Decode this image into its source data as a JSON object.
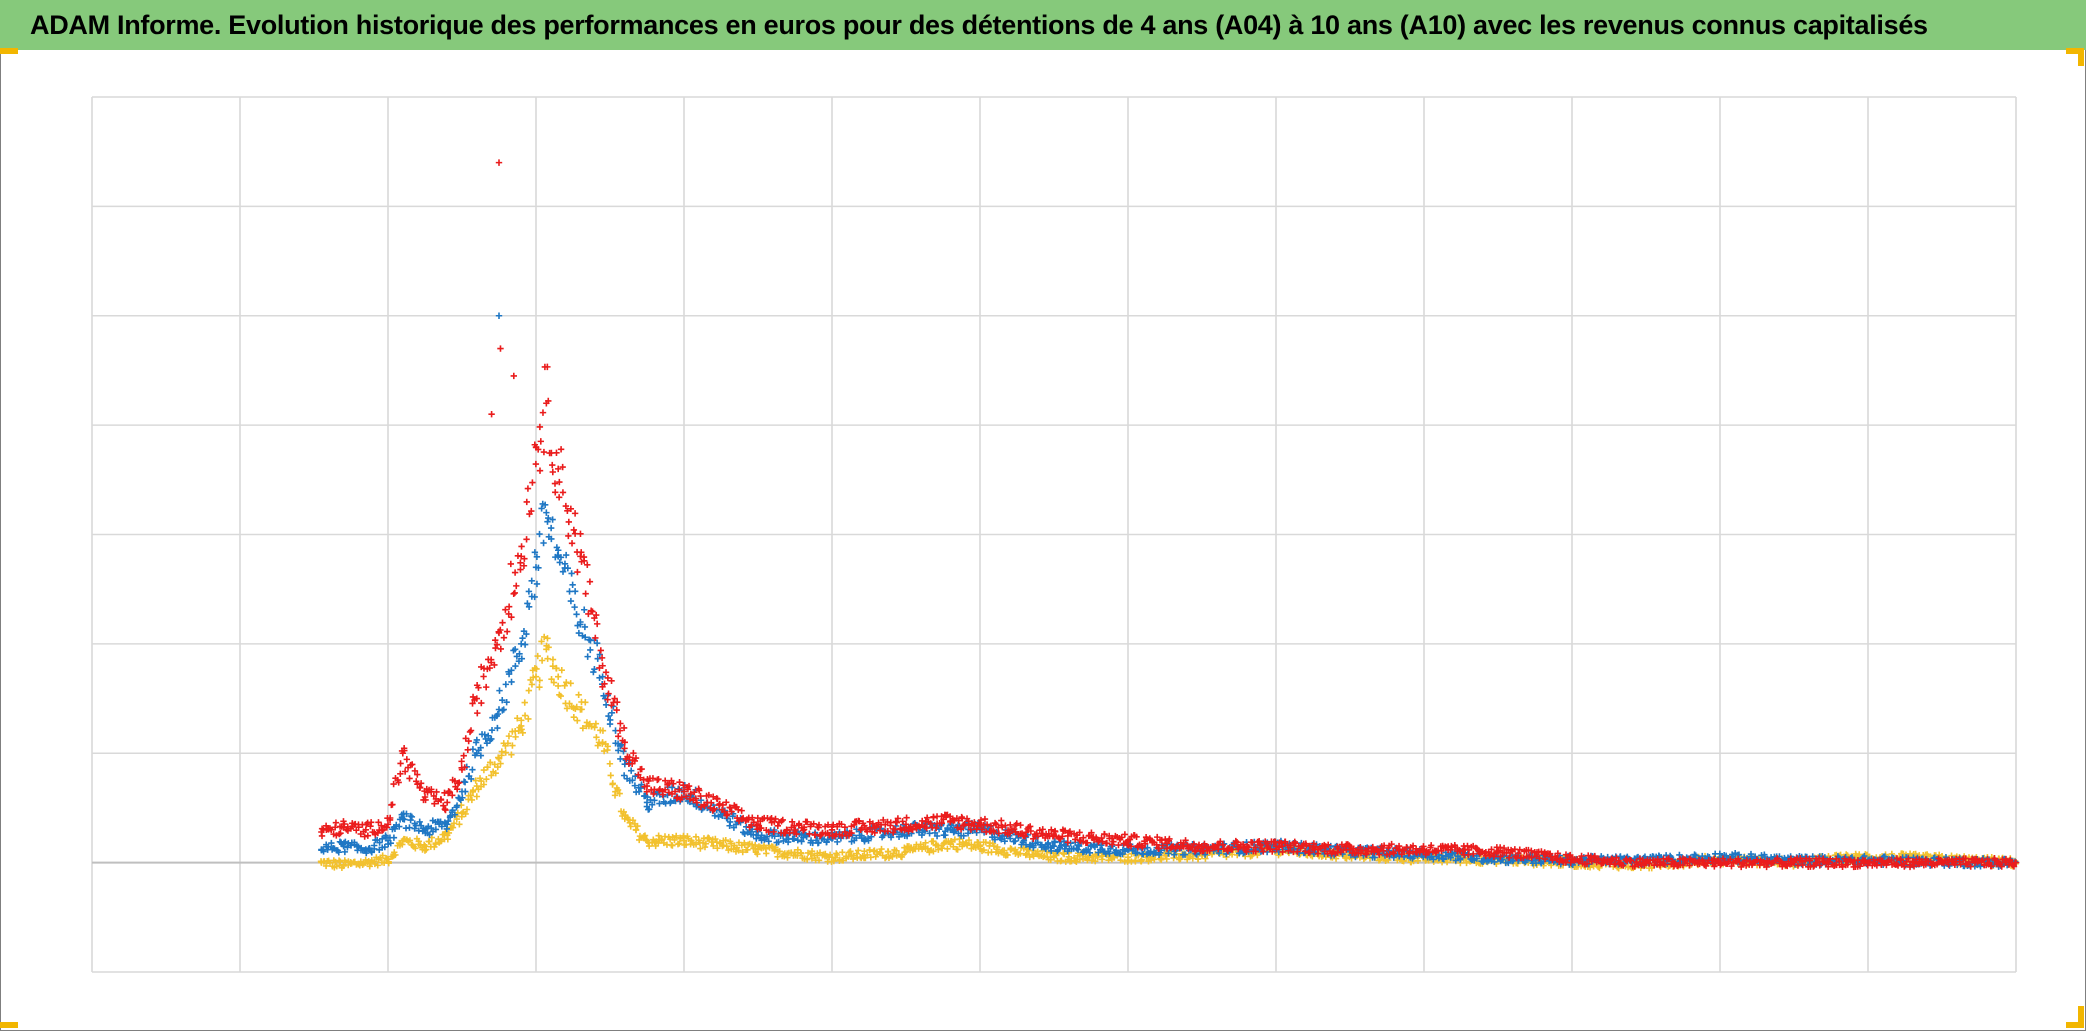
{
  "page": {
    "title": "ADAM Informe. Evolution historique des performances en euros pour des détentions de 4 ans (A04) à 10 ans (A10) avec les revenus connus capitalisés",
    "banner_color": "#86c97b",
    "corner_color": "#f2b600"
  },
  "chart_data": {
    "type": "scatter",
    "title": "ADAM Informe. Evolution historique des performances en euros pour des détentions de 4 ans (A04) à 10 ans (A10) avec les revenus connus capitalisés",
    "xlabel": "",
    "ylabel": "",
    "marker": "plus",
    "grid": true,
    "axis_tick_labels_visible": false,
    "x_range": [
      0,
      13
    ],
    "y_range": [
      -1,
      7
    ],
    "x_gridlines": 13,
    "y_gridlines": 8,
    "series": [
      {
        "color": "#f2c12e",
        "x": [
          1.55,
          1.7,
          1.85,
          2.0,
          2.1,
          2.25,
          2.4,
          2.5,
          2.6,
          2.75,
          2.9,
          3.0,
          3.07,
          3.15,
          3.3,
          3.45,
          3.6,
          3.75,
          4.0,
          4.5,
          5.0,
          5.5,
          5.8,
          6.0,
          6.5,
          7.0,
          7.5,
          8.0,
          8.5,
          9.0,
          9.5,
          10.0,
          10.5,
          11.0,
          11.5,
          12.0,
          12.5,
          13.0
        ],
        "y": [
          0.0,
          -0.02,
          0.0,
          0.03,
          0.2,
          0.15,
          0.25,
          0.45,
          0.7,
          0.95,
          1.25,
          1.7,
          1.95,
          1.7,
          1.4,
          1.1,
          0.4,
          0.2,
          0.2,
          0.12,
          0.05,
          0.1,
          0.18,
          0.15,
          0.05,
          0.05,
          0.07,
          0.12,
          0.07,
          0.04,
          0.03,
          0.0,
          -0.02,
          0.03,
          0.0,
          0.05,
          0.03,
          0.0
        ]
      },
      {
        "color": "#1f77c4",
        "x": [
          1.55,
          1.7,
          1.85,
          2.0,
          2.1,
          2.25,
          2.4,
          2.5,
          2.6,
          2.75,
          2.9,
          3.0,
          3.07,
          3.15,
          3.3,
          3.45,
          3.6,
          3.75,
          4.0,
          4.5,
          5.0,
          5.5,
          5.8,
          6.0,
          6.5,
          7.0,
          7.5,
          8.0,
          8.5,
          9.0,
          9.5,
          10.0,
          10.5,
          11.0,
          11.5,
          12.0,
          12.5,
          13.0
        ],
        "y": [
          0.12,
          0.15,
          0.12,
          0.2,
          0.4,
          0.3,
          0.35,
          0.65,
          1.0,
          1.4,
          2.0,
          2.7,
          3.2,
          2.8,
          2.2,
          1.7,
          0.9,
          0.55,
          0.65,
          0.25,
          0.22,
          0.3,
          0.3,
          0.3,
          0.15,
          0.12,
          0.12,
          0.15,
          0.1,
          0.08,
          0.04,
          0.02,
          0.02,
          0.05,
          0.02,
          0.02,
          0.01,
          0.0
        ]
      },
      {
        "color": "#ea1c1c",
        "x": [
          1.55,
          1.7,
          1.85,
          2.0,
          2.1,
          2.25,
          2.4,
          2.5,
          2.6,
          2.75,
          2.9,
          3.0,
          3.07,
          3.15,
          3.3,
          3.45,
          3.6,
          3.75,
          4.0,
          4.5,
          5.0,
          5.5,
          5.8,
          6.0,
          6.5,
          7.0,
          7.5,
          8.0,
          8.5,
          9.0,
          9.5,
          10.0,
          10.5,
          11.0,
          11.5,
          12.0,
          12.5,
          13.0
        ],
        "y": [
          0.28,
          0.32,
          0.3,
          0.35,
          1.0,
          0.6,
          0.55,
          0.85,
          1.5,
          2.1,
          2.8,
          3.8,
          4.2,
          3.6,
          2.8,
          1.8,
          1.1,
          0.7,
          0.65,
          0.35,
          0.3,
          0.35,
          0.38,
          0.35,
          0.25,
          0.2,
          0.15,
          0.15,
          0.12,
          0.12,
          0.1,
          0.03,
          0.0,
          0.0,
          0.0,
          0.0,
          0.0,
          0.0
        ]
      }
    ],
    "annotations": [
      {
        "color": "#ea1c1c",
        "x": 2.75,
        "y": 6.4
      },
      {
        "color": "#1f77c4",
        "x": 2.75,
        "y": 5.0
      },
      {
        "color": "#ea1c1c",
        "x": 2.76,
        "y": 4.7
      },
      {
        "color": "#ea1c1c",
        "x": 2.7,
        "y": 4.1
      },
      {
        "color": "#ea1c1c",
        "x": 2.85,
        "y": 4.45
      }
    ]
  }
}
